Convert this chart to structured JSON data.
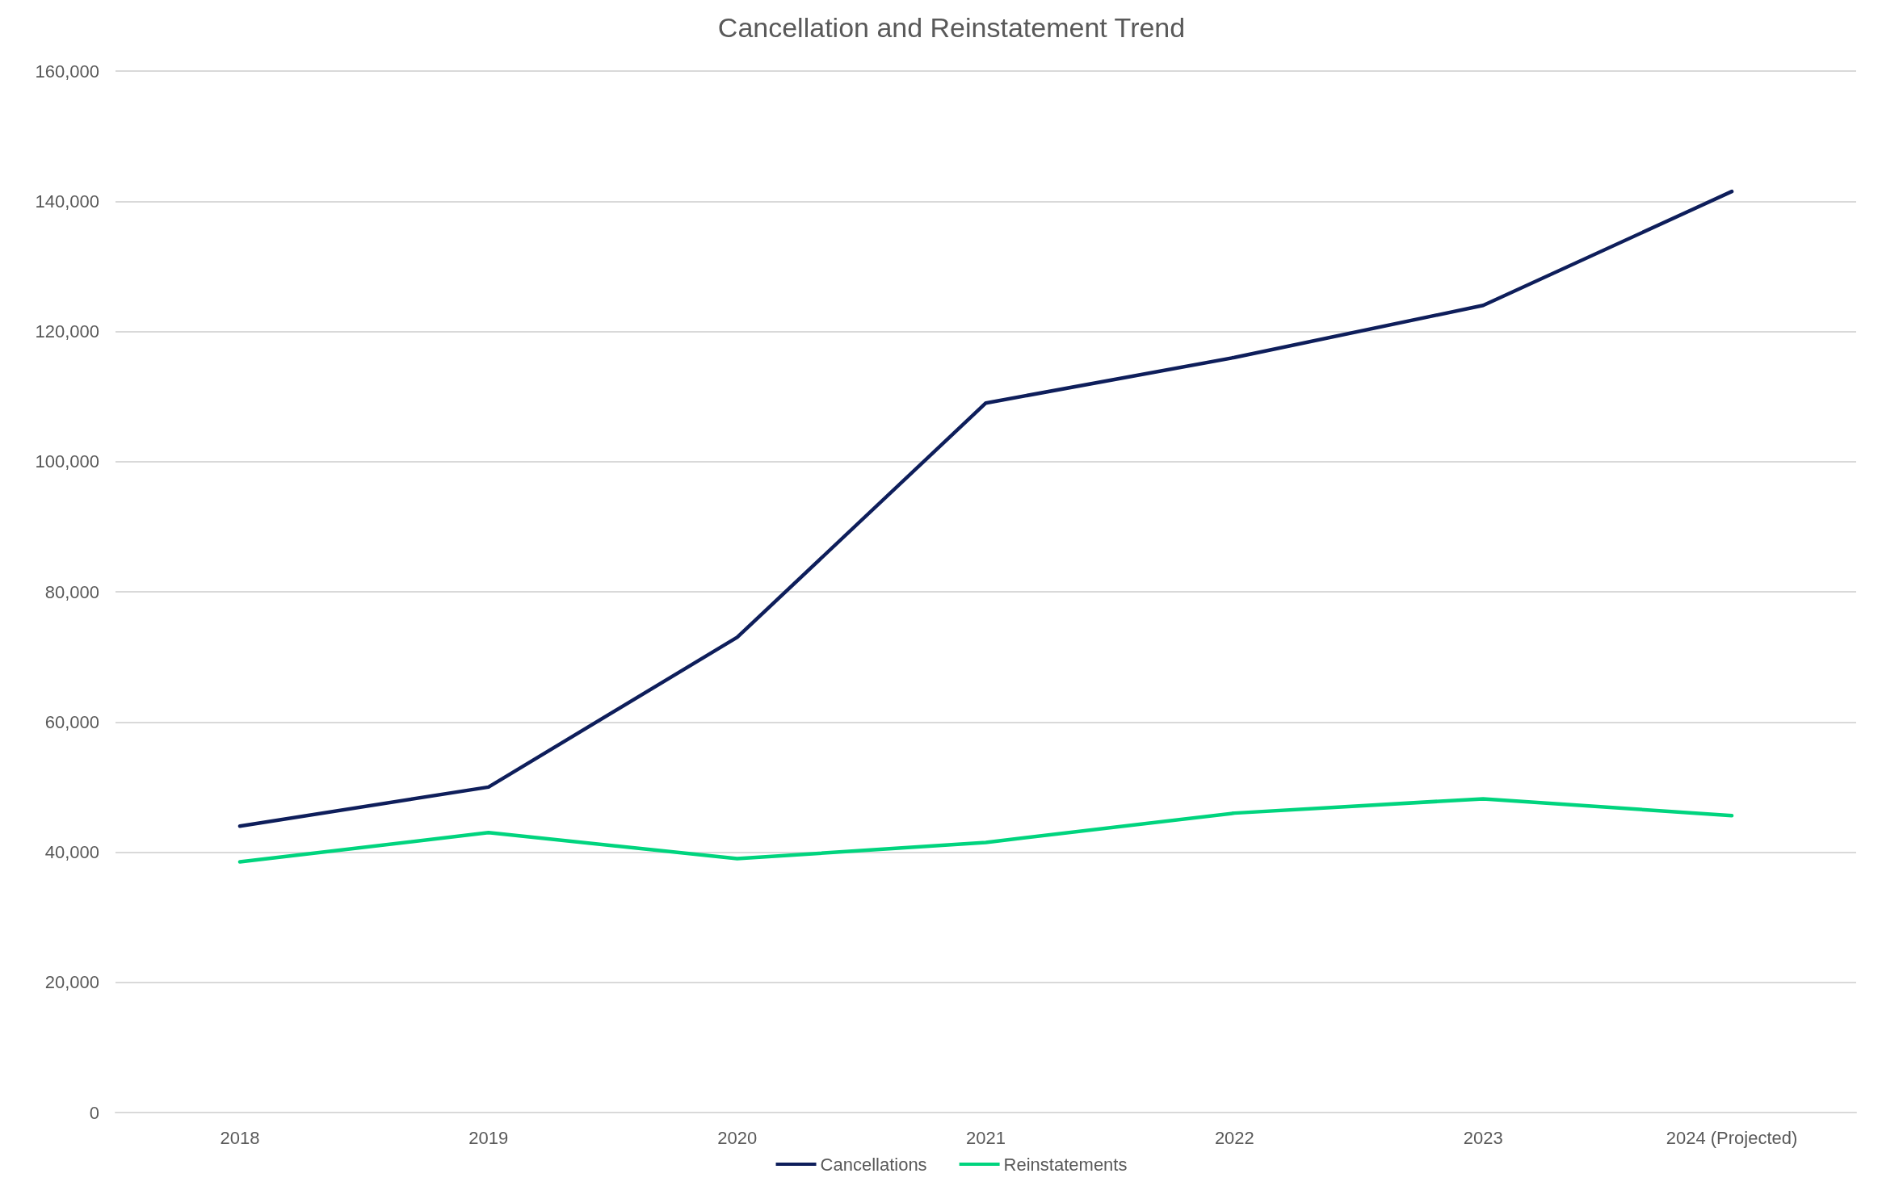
{
  "chart_data": {
    "type": "line",
    "title": "Cancellation and Reinstatement Trend",
    "categories": [
      "2018",
      "2019",
      "2020",
      "2021",
      "2022",
      "2023",
      "2024 (Projected)"
    ],
    "series": [
      {
        "name": "Cancellations",
        "color": "#0e1e5b",
        "values": [
          44000,
          50000,
          73000,
          109000,
          116000,
          124000,
          141500
        ]
      },
      {
        "name": "Reinstatements",
        "color": "#00d47e",
        "values": [
          38500,
          43000,
          39000,
          41500,
          46000,
          48200,
          45600
        ]
      }
    ],
    "ylim": [
      0,
      160000
    ],
    "yticks": [
      0,
      {
        "value": 20000,
        "label": "20,000"
      },
      {
        "value": 40000,
        "label": "40,000"
      },
      {
        "value": 60000,
        "label": "60,000"
      },
      {
        "value": 80000,
        "label": "80,000"
      },
      {
        "value": 100000,
        "label": "100,000"
      },
      {
        "value": 120000,
        "label": "120,000"
      },
      {
        "value": 140000,
        "label": "140,000"
      },
      {
        "value": 160000,
        "label": "160,000"
      }
    ],
    "grid": "y",
    "legend": "bottom",
    "marker": "none",
    "line_style": "solid"
  }
}
